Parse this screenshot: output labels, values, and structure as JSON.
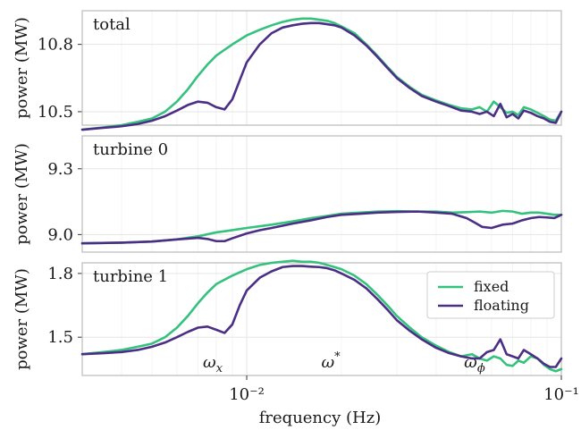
{
  "figure": {
    "xlabel": "frequency (Hz)",
    "ylabel": "power (MW)",
    "legend": [
      "fixed",
      "floating"
    ],
    "colors": {
      "fixed": "#35c17e",
      "floating": "#4b2f85"
    }
  },
  "chart_data": [
    {
      "type": "line",
      "title": "total",
      "xscale": "log",
      "xlim": [
        0.003,
        0.1
      ],
      "ylim": [
        10.44,
        10.95
      ],
      "yticks": [
        10.5,
        10.8
      ],
      "ytick_labels": [
        "10.5",
        "10.8"
      ],
      "xtick_labels": [],
      "annotations": [],
      "series": [
        {
          "name": "fixed",
          "x": [
            0.003,
            0.0035,
            0.004,
            0.0045,
            0.005,
            0.0055,
            0.006,
            0.0065,
            0.007,
            0.0075,
            0.008,
            0.009,
            0.01,
            0.011,
            0.012,
            0.013,
            0.014,
            0.015,
            0.016,
            0.017,
            0.018,
            0.019,
            0.02,
            0.022,
            0.024,
            0.026,
            0.028,
            0.03,
            0.033,
            0.036,
            0.04,
            0.044,
            0.048,
            0.052,
            0.055,
            0.058,
            0.061,
            0.064,
            0.067,
            0.07,
            0.073,
            0.076,
            0.08,
            0.084,
            0.088,
            0.092,
            0.096,
            0.1
          ],
          "y": [
            10.42,
            10.43,
            10.44,
            10.455,
            10.47,
            10.5,
            10.545,
            10.6,
            10.66,
            10.71,
            10.75,
            10.8,
            10.84,
            10.865,
            10.885,
            10.9,
            10.91,
            10.915,
            10.915,
            10.91,
            10.905,
            10.895,
            10.88,
            10.85,
            10.8,
            10.75,
            10.7,
            10.655,
            10.61,
            10.575,
            10.55,
            10.53,
            10.515,
            10.51,
            10.52,
            10.5,
            10.545,
            10.52,
            10.495,
            10.5,
            10.485,
            10.52,
            10.51,
            10.495,
            10.48,
            10.465,
            10.46,
            10.5
          ]
        },
        {
          "name": "floating",
          "x": [
            0.003,
            0.0035,
            0.004,
            0.0045,
            0.005,
            0.0055,
            0.006,
            0.0065,
            0.007,
            0.0075,
            0.008,
            0.0085,
            0.009,
            0.0095,
            0.01,
            0.011,
            0.012,
            0.013,
            0.014,
            0.015,
            0.016,
            0.017,
            0.018,
            0.019,
            0.02,
            0.022,
            0.024,
            0.026,
            0.028,
            0.03,
            0.033,
            0.036,
            0.04,
            0.044,
            0.048,
            0.052,
            0.055,
            0.058,
            0.061,
            0.064,
            0.067,
            0.07,
            0.073,
            0.076,
            0.08,
            0.084,
            0.088,
            0.092,
            0.096,
            0.1
          ],
          "y": [
            10.42,
            10.428,
            10.435,
            10.445,
            10.46,
            10.48,
            10.505,
            10.53,
            10.545,
            10.54,
            10.52,
            10.51,
            10.555,
            10.64,
            10.72,
            10.8,
            10.85,
            10.875,
            10.885,
            10.892,
            10.895,
            10.895,
            10.89,
            10.885,
            10.875,
            10.84,
            10.795,
            10.745,
            10.695,
            10.65,
            10.605,
            10.57,
            10.545,
            10.525,
            10.505,
            10.5,
            10.49,
            10.5,
            10.48,
            10.535,
            10.475,
            10.49,
            10.47,
            10.505,
            10.495,
            10.48,
            10.47,
            10.455,
            10.45,
            10.5
          ]
        }
      ]
    },
    {
      "type": "line",
      "title": "turbine 0",
      "xscale": "log",
      "xlim": [
        0.003,
        0.1
      ],
      "ylim": [
        8.92,
        9.45
      ],
      "yticks": [
        9.0,
        9.3
      ],
      "ytick_labels": [
        "9.0",
        "9.3"
      ],
      "xtick_labels": [],
      "annotations": [],
      "series": [
        {
          "name": "fixed",
          "x": [
            0.003,
            0.004,
            0.005,
            0.006,
            0.007,
            0.008,
            0.009,
            0.01,
            0.012,
            0.014,
            0.016,
            0.018,
            0.02,
            0.023,
            0.026,
            0.03,
            0.035,
            0.04,
            0.045,
            0.05,
            0.055,
            0.06,
            0.065,
            0.07,
            0.075,
            0.08,
            0.085,
            0.09,
            0.095,
            0.1
          ],
          "y": [
            8.96,
            8.963,
            8.968,
            8.978,
            8.992,
            9.01,
            9.02,
            9.03,
            9.045,
            9.06,
            9.075,
            9.085,
            9.095,
            9.1,
            9.105,
            9.107,
            9.105,
            9.105,
            9.1,
            9.102,
            9.105,
            9.1,
            9.108,
            9.105,
            9.095,
            9.1,
            9.1,
            9.095,
            9.09,
            9.09
          ]
        },
        {
          "name": "floating",
          "x": [
            0.003,
            0.004,
            0.005,
            0.006,
            0.007,
            0.0075,
            0.008,
            0.0085,
            0.009,
            0.01,
            0.011,
            0.012,
            0.014,
            0.016,
            0.018,
            0.02,
            0.023,
            0.026,
            0.03,
            0.035,
            0.04,
            0.045,
            0.05,
            0.053,
            0.056,
            0.06,
            0.065,
            0.07,
            0.075,
            0.08,
            0.085,
            0.09,
            0.095,
            0.1
          ],
          "y": [
            8.96,
            8.963,
            8.968,
            8.978,
            8.985,
            8.98,
            8.97,
            8.97,
            8.983,
            9.005,
            9.02,
            9.03,
            9.05,
            9.065,
            9.08,
            9.09,
            9.095,
            9.1,
            9.103,
            9.105,
            9.1,
            9.095,
            9.075,
            9.055,
            9.035,
            9.03,
            9.045,
            9.05,
            9.065,
            9.075,
            9.08,
            9.078,
            9.075,
            9.09
          ]
        }
      ]
    },
    {
      "type": "line",
      "title": "turbine 1",
      "xscale": "log",
      "xlim": [
        0.003,
        0.1
      ],
      "ylim": [
        1.32,
        1.85
      ],
      "yticks": [
        1.5,
        1.8
      ],
      "ytick_labels": [
        "1.5",
        "1.8"
      ],
      "xticks": [
        0.01,
        0.1
      ],
      "xtick_labels": [
        "10⁻²",
        "10⁻¹"
      ],
      "annotations": [
        {
          "label": "ω",
          "sub": "x",
          "sup": "",
          "x": 0.0078
        },
        {
          "label": "ω",
          "sub": "",
          "sup": "*",
          "x": 0.0185
        },
        {
          "label": "ω",
          "sub": "ϕ",
          "sup": "",
          "x": 0.053
        }
      ],
      "series": [
        {
          "name": "fixed",
          "x": [
            0.003,
            0.0035,
            0.004,
            0.0045,
            0.005,
            0.0055,
            0.006,
            0.0065,
            0.007,
            0.0075,
            0.008,
            0.009,
            0.01,
            0.011,
            0.012,
            0.013,
            0.014,
            0.015,
            0.016,
            0.017,
            0.018,
            0.019,
            0.02,
            0.022,
            0.024,
            0.026,
            0.028,
            0.03,
            0.033,
            0.036,
            0.04,
            0.044,
            0.048,
            0.052,
            0.055,
            0.058,
            0.061,
            0.064,
            0.067,
            0.07,
            0.073,
            0.076,
            0.08,
            0.084,
            0.088,
            0.092,
            0.096,
            0.1
          ],
          "y": [
            1.42,
            1.43,
            1.44,
            1.455,
            1.47,
            1.5,
            1.545,
            1.6,
            1.66,
            1.71,
            1.75,
            1.79,
            1.82,
            1.84,
            1.85,
            1.855,
            1.86,
            1.855,
            1.855,
            1.85,
            1.84,
            1.83,
            1.82,
            1.79,
            1.75,
            1.7,
            1.65,
            1.6,
            1.545,
            1.5,
            1.46,
            1.43,
            1.41,
            1.42,
            1.4,
            1.39,
            1.41,
            1.4,
            1.37,
            1.365,
            1.39,
            1.38,
            1.41,
            1.4,
            1.37,
            1.35,
            1.34,
            1.35
          ]
        },
        {
          "name": "floating",
          "x": [
            0.003,
            0.0035,
            0.004,
            0.0045,
            0.005,
            0.0055,
            0.006,
            0.0065,
            0.007,
            0.0075,
            0.008,
            0.0085,
            0.009,
            0.0095,
            0.01,
            0.011,
            0.012,
            0.013,
            0.014,
            0.015,
            0.016,
            0.017,
            0.018,
            0.019,
            0.02,
            0.022,
            0.024,
            0.026,
            0.028,
            0.03,
            0.033,
            0.036,
            0.04,
            0.044,
            0.048,
            0.052,
            0.055,
            0.058,
            0.061,
            0.064,
            0.067,
            0.07,
            0.073,
            0.076,
            0.08,
            0.084,
            0.088,
            0.092,
            0.096,
            0.1
          ],
          "y": [
            1.42,
            1.425,
            1.43,
            1.44,
            1.455,
            1.475,
            1.5,
            1.525,
            1.545,
            1.55,
            1.535,
            1.52,
            1.56,
            1.65,
            1.72,
            1.78,
            1.81,
            1.83,
            1.835,
            1.835,
            1.832,
            1.83,
            1.825,
            1.815,
            1.8,
            1.77,
            1.73,
            1.68,
            1.63,
            1.58,
            1.53,
            1.49,
            1.45,
            1.425,
            1.41,
            1.4,
            1.4,
            1.43,
            1.44,
            1.49,
            1.42,
            1.41,
            1.4,
            1.44,
            1.42,
            1.4,
            1.375,
            1.36,
            1.36,
            1.4
          ]
        }
      ]
    }
  ]
}
